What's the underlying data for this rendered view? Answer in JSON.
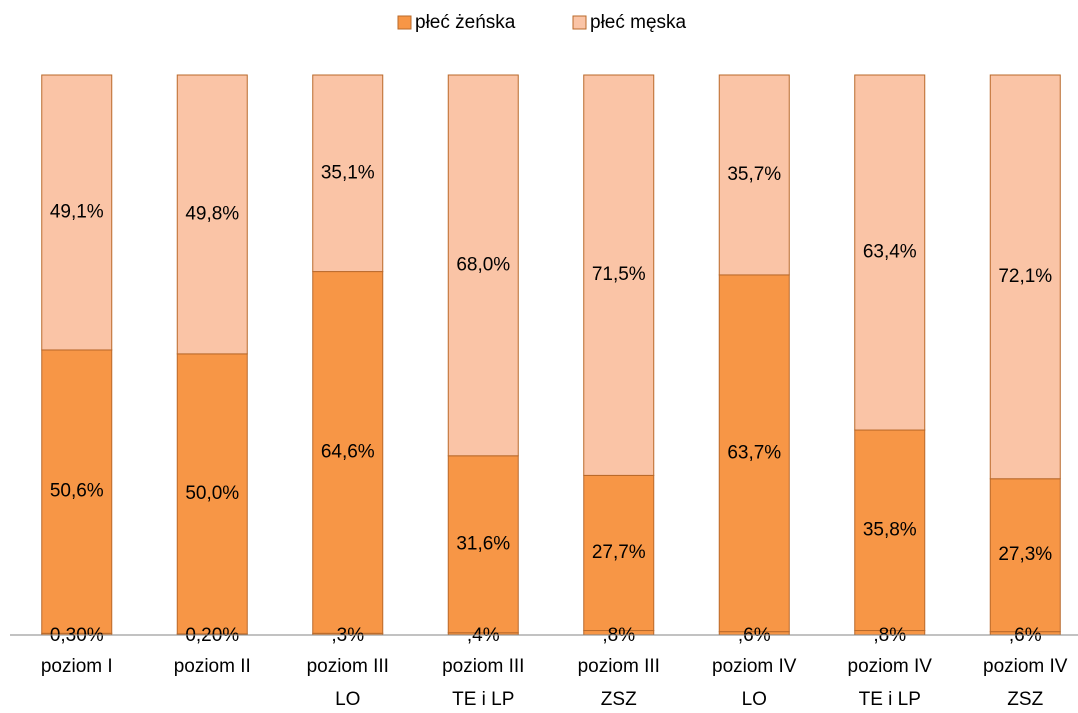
{
  "chart_data": {
    "type": "stacked_bar",
    "categories": [
      [
        "poziom I"
      ],
      [
        "poziom II"
      ],
      [
        "poziom III",
        "LO"
      ],
      [
        "poziom III",
        "TE i LP"
      ],
      [
        "poziom III",
        "ZSZ"
      ],
      [
        "poziom IV",
        "LO"
      ],
      [
        "poziom IV",
        "TE i LP"
      ],
      [
        "poziom IV",
        "ZSZ"
      ]
    ],
    "series": [
      {
        "color": "#f79646",
        "values": [
          0.3,
          0.2,
          0.3,
          0.4,
          0.8,
          0.6,
          0.8,
          0.6
        ],
        "value_labels": [
          "0,30%",
          "0,20%",
          ",3%",
          ",4%",
          ",8%",
          ",6%",
          ",8%",
          ",6%"
        ]
      },
      {
        "name": "płeć żeńska",
        "color": "#f79646",
        "values": [
          50.6,
          50.0,
          64.6,
          31.6,
          27.7,
          63.7,
          35.8,
          27.3
        ],
        "value_labels": [
          "50,6%",
          "50,0%",
          "64,6%",
          "31,6%",
          "27,7%",
          "63,7%",
          "35,8%",
          "27,3%"
        ]
      },
      {
        "name": "płeć męska",
        "color": "#fac4a6",
        "values": [
          49.1,
          49.8,
          35.1,
          68.0,
          71.5,
          35.7,
          63.4,
          72.1
        ],
        "value_labels": [
          "49,1%",
          "49,8%",
          "35,1%",
          "68,0%",
          "71,5%",
          "35,7%",
          "63,4%",
          "72,1%"
        ]
      }
    ],
    "ylim": [
      0,
      100
    ],
    "legend": "top"
  }
}
